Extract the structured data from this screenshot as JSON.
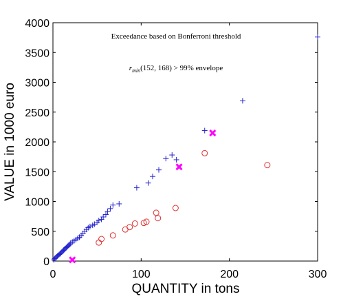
{
  "chart_data": {
    "type": "scatter",
    "xlabel": "QUANTITY in tons",
    "ylabel": "VALUE in 1000 euro",
    "xlim": [
      0,
      300
    ],
    "ylim": [
      0,
      4000
    ],
    "xticks": [
      "0",
      "100",
      "200",
      "300"
    ],
    "yticks": [
      "0",
      "500",
      "1000",
      "1500",
      "2000",
      "2500",
      "3000",
      "3500",
      "4000"
    ],
    "grid": false,
    "annotations": {
      "line1": "Exceedance based on Bonferroni threshold",
      "line2_r": "r",
      "line2_sub": "min",
      "line2_rest": "(152, 168) > 99% envelope"
    },
    "series": [
      {
        "marker": "plus",
        "color": "#2222cc",
        "points": [
          [
            1,
            20
          ],
          [
            2,
            40
          ],
          [
            3,
            55
          ],
          [
            4,
            70
          ],
          [
            5,
            85
          ],
          [
            6,
            95
          ],
          [
            7,
            110
          ],
          [
            8,
            120
          ],
          [
            9,
            135
          ],
          [
            10,
            150
          ],
          [
            11,
            165
          ],
          [
            12,
            180
          ],
          [
            13,
            195
          ],
          [
            14,
            210
          ],
          [
            15,
            225
          ],
          [
            16,
            240
          ],
          [
            17,
            250
          ],
          [
            18,
            265
          ],
          [
            19,
            280
          ],
          [
            20,
            300
          ],
          [
            22,
            320
          ],
          [
            24,
            340
          ],
          [
            26,
            360
          ],
          [
            28,
            380
          ],
          [
            30,
            400
          ],
          [
            32,
            430
          ],
          [
            34,
            460
          ],
          [
            36,
            500
          ],
          [
            38,
            530
          ],
          [
            40,
            560
          ],
          [
            42,
            580
          ],
          [
            45,
            600
          ],
          [
            47,
            620
          ],
          [
            50,
            650
          ],
          [
            52,
            680
          ],
          [
            55,
            700
          ],
          [
            57,
            740
          ],
          [
            60,
            780
          ],
          [
            62,
            830
          ],
          [
            65,
            880
          ],
          [
            68,
            940
          ],
          [
            75,
            960
          ],
          [
            95,
            1230
          ],
          [
            108,
            1310
          ],
          [
            113,
            1420
          ],
          [
            120,
            1530
          ],
          [
            128,
            1720
          ],
          [
            135,
            1780
          ],
          [
            140,
            1700
          ],
          [
            172,
            2190
          ],
          [
            215,
            2690
          ],
          [
            300,
            3760
          ]
        ]
      },
      {
        "marker": "circle",
        "color": "#e03030",
        "points": [
          [
            52,
            310
          ],
          [
            55,
            370
          ],
          [
            68,
            430
          ],
          [
            82,
            530
          ],
          [
            87,
            570
          ],
          [
            93,
            630
          ],
          [
            103,
            640
          ],
          [
            106,
            660
          ],
          [
            117,
            810
          ],
          [
            119,
            720
          ],
          [
            139,
            890
          ],
          [
            172,
            1810
          ],
          [
            243,
            1610
          ]
        ]
      },
      {
        "marker": "x",
        "color": "#ff00ff",
        "points": [
          [
            22,
            20
          ],
          [
            143,
            1580
          ],
          [
            181,
            2150
          ]
        ]
      }
    ]
  }
}
